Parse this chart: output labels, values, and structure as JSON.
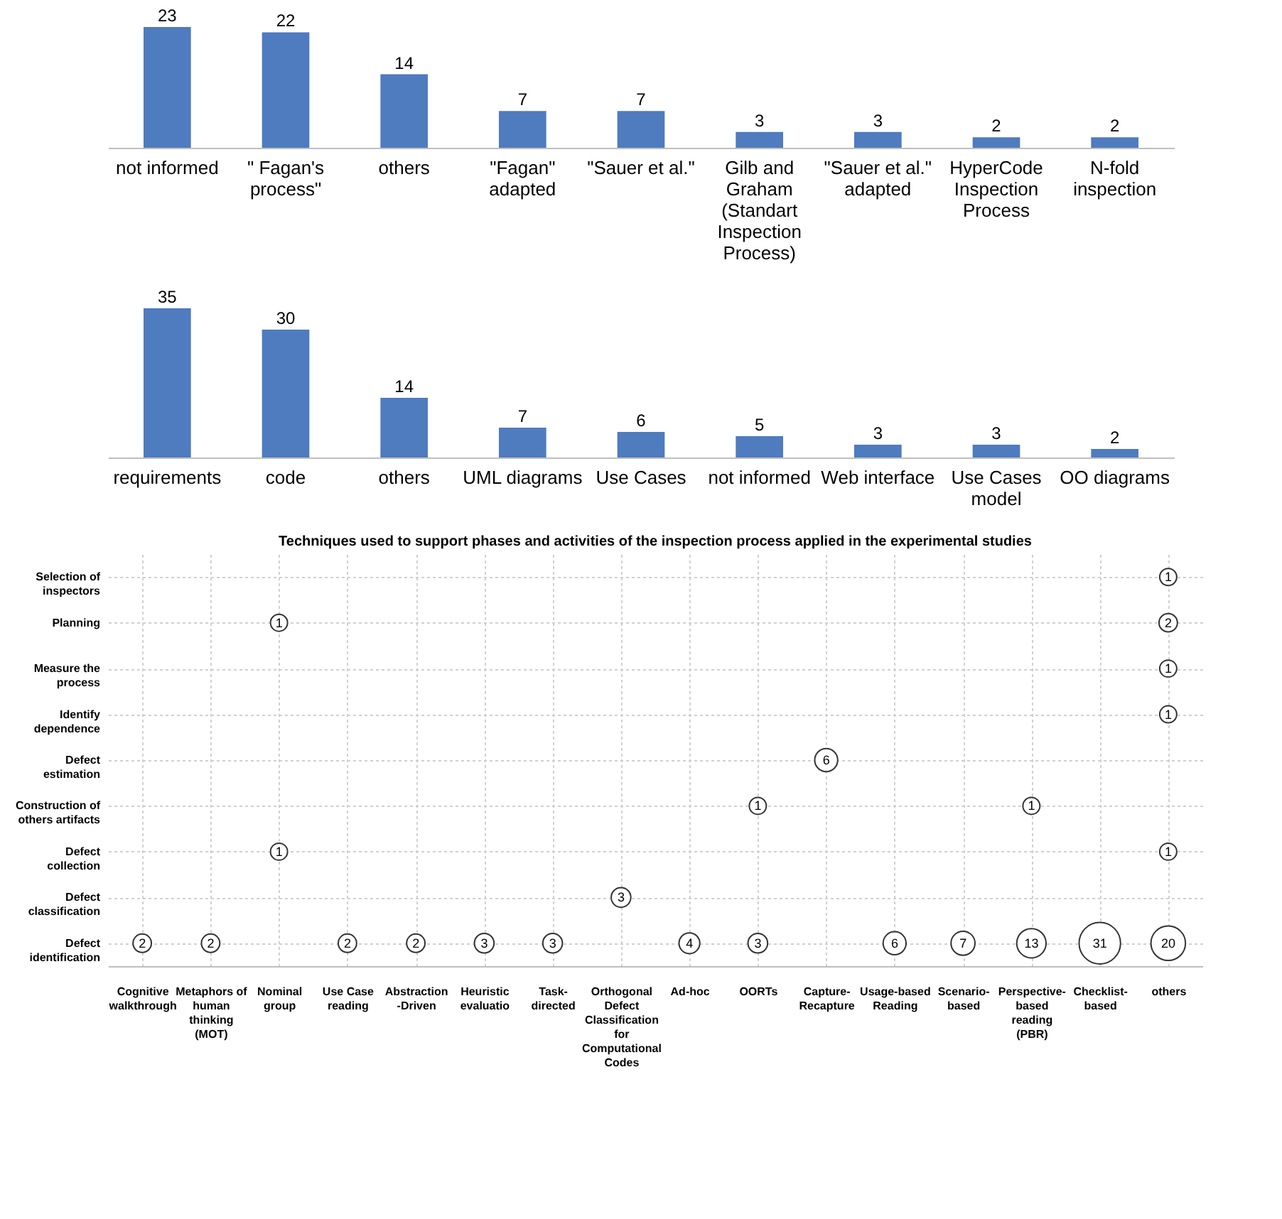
{
  "chart_data": [
    {
      "type": "bar",
      "categories": [
        "not informed",
        "\" Fagan's process\"",
        "others",
        "\"Fagan\" adapted",
        "\"Sauer et al.\"",
        "Gilb and Graham (Standart Inspection Process)",
        "\"Sauer et al.\" adapted",
        "HyperCode Inspection Process",
        "N-fold inspection"
      ],
      "values": [
        23,
        22,
        14,
        7,
        7,
        3,
        3,
        2,
        2
      ],
      "color": "#4f7bbf",
      "data_labels": true,
      "tick_labels": "x"
    },
    {
      "type": "bar",
      "categories": [
        "requirements",
        "code",
        "others",
        "UML diagrams",
        "Use Cases",
        "not informed",
        "Web interface",
        "Use Cases model",
        "OO diagrams"
      ],
      "values": [
        35,
        30,
        14,
        7,
        6,
        5,
        3,
        3,
        2
      ],
      "color": "#4f7bbf",
      "data_labels": true,
      "tick_labels": "x"
    },
    {
      "type": "heatmap",
      "title": "Techniques used to support phases and activities of the inspection process applied in the experimental studies",
      "categories": [
        "Cognitive walkthrough",
        "Metaphors of human thinking (MOT)",
        "Nominal group",
        "Use Case reading",
        "Abstraction -Driven",
        "Heuristic evaluatio",
        "Task-directed",
        "Orthogonal Defect Classification for Computational Codes",
        "Ad-hoc",
        "OORTs",
        "Capture-Recapture",
        "Usage-based Reading",
        "Scenario-based",
        "Perspective-based reading (PBR)",
        "Checklist-based",
        "others"
      ],
      "y_categories": [
        "Selection of inspectors",
        "Planning",
        "Measure the process",
        "Identify dependence",
        "Defect estimation",
        "Construction of others artifacts",
        "Defect collection",
        "Defect classification",
        "Defect identification"
      ],
      "grid": true,
      "data_labels": true,
      "color": "#333333",
      "cells": [
        [
          null,
          null,
          null,
          null,
          null,
          null,
          null,
          null,
          null,
          null,
          null,
          null,
          null,
          null,
          null,
          1
        ],
        [
          null,
          null,
          1,
          null,
          null,
          null,
          null,
          null,
          null,
          null,
          null,
          null,
          null,
          null,
          null,
          2
        ],
        [
          null,
          null,
          null,
          null,
          null,
          null,
          null,
          null,
          null,
          null,
          null,
          null,
          null,
          null,
          null,
          1
        ],
        [
          null,
          null,
          null,
          null,
          null,
          null,
          null,
          null,
          null,
          null,
          null,
          null,
          null,
          null,
          null,
          1
        ],
        [
          null,
          null,
          null,
          null,
          null,
          null,
          null,
          null,
          null,
          null,
          6,
          null,
          null,
          null,
          null,
          null
        ],
        [
          null,
          null,
          null,
          null,
          null,
          null,
          null,
          null,
          null,
          1,
          null,
          null,
          null,
          1,
          null,
          null
        ],
        [
          null,
          null,
          1,
          null,
          null,
          null,
          null,
          null,
          null,
          null,
          null,
          null,
          null,
          null,
          null,
          1
        ],
        [
          null,
          null,
          null,
          null,
          null,
          null,
          null,
          3,
          null,
          null,
          null,
          null,
          null,
          null,
          null,
          null
        ],
        [
          2,
          2,
          null,
          2,
          2,
          3,
          3,
          null,
          4,
          3,
          null,
          6,
          7,
          13,
          31,
          20
        ]
      ]
    }
  ]
}
